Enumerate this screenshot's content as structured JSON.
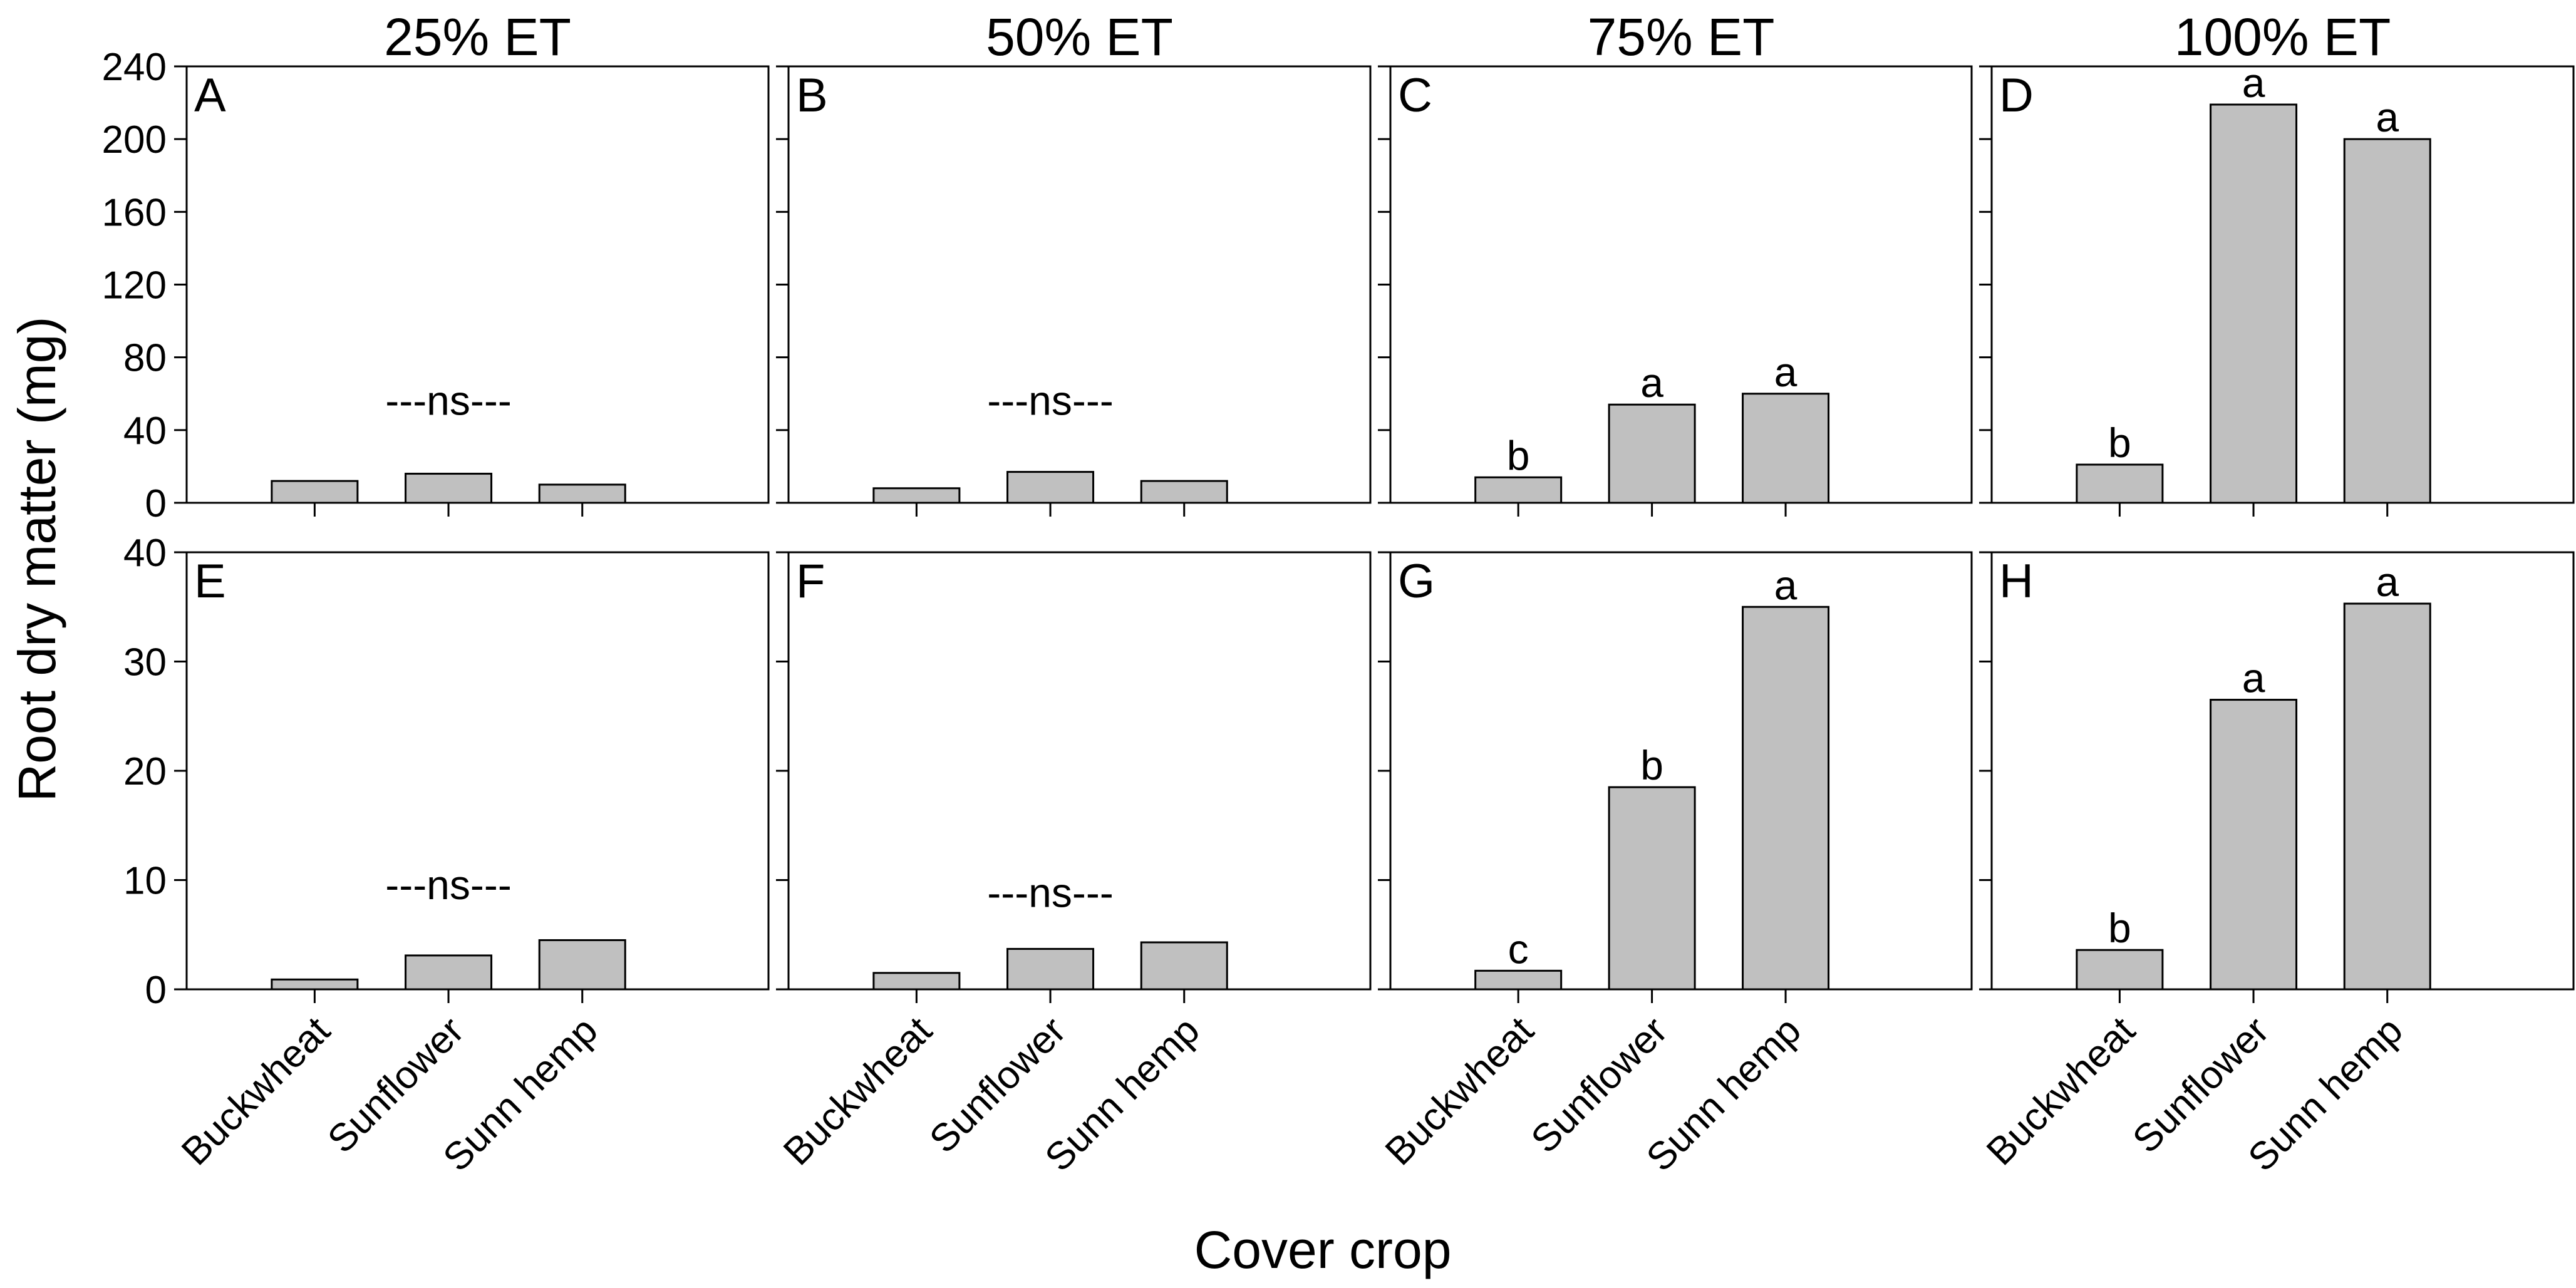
{
  "colors": {
    "bar_fill": "#c0c0c0",
    "bar_stroke": "#000000",
    "text": "#000000"
  },
  "figure": {
    "ylabel": "Root dry matter (mg)",
    "xlabel": "Cover crop"
  },
  "chart_data": [
    {
      "type": "bar",
      "panel": "A",
      "title": "25% ET",
      "categories": [
        "Buckwheat",
        "Sunflower",
        "Sunn hemp"
      ],
      "values": [
        12,
        16,
        10
      ],
      "ylim": [
        0,
        240
      ],
      "yticks": [
        0,
        40,
        80,
        120,
        160,
        200,
        240
      ],
      "letters": [],
      "annotation": "---ns---",
      "annotation_y": 56
    },
    {
      "type": "bar",
      "panel": "B",
      "title": "50% ET",
      "categories": [
        "Buckwheat",
        "Sunflower",
        "Sunn hemp"
      ],
      "values": [
        8,
        17,
        12
      ],
      "ylim": [
        0,
        240
      ],
      "yticks": [
        0,
        40,
        80,
        120,
        160,
        200,
        240
      ],
      "letters": [],
      "annotation": "---ns---",
      "annotation_y": 56
    },
    {
      "type": "bar",
      "panel": "C",
      "title": "75% ET",
      "categories": [
        "Buckwheat",
        "Sunflower",
        "Sunn hemp"
      ],
      "values": [
        14,
        54,
        60
      ],
      "ylim": [
        0,
        240
      ],
      "yticks": [
        0,
        40,
        80,
        120,
        160,
        200,
        240
      ],
      "letters": [
        "b",
        "a",
        "a"
      ],
      "annotation": "",
      "annotation_y": 0
    },
    {
      "type": "bar",
      "panel": "D",
      "title": "100% ET",
      "categories": [
        "Buckwheat",
        "Sunflower",
        "Sunn hemp"
      ],
      "values": [
        21,
        219,
        200
      ],
      "ylim": [
        0,
        240
      ],
      "yticks": [
        0,
        40,
        80,
        120,
        160,
        200,
        240
      ],
      "letters": [
        "b",
        "a",
        "a"
      ],
      "annotation": "",
      "annotation_y": 0
    },
    {
      "type": "bar",
      "panel": "E",
      "title": "",
      "categories": [
        "Buckwheat",
        "Sunflower",
        "Sunn hemp"
      ],
      "values": [
        0.9,
        3.1,
        4.5
      ],
      "ylim": [
        0,
        40
      ],
      "yticks": [
        0,
        10,
        20,
        30,
        40
      ],
      "letters": [],
      "annotation": "---ns---",
      "annotation_y": 9.5
    },
    {
      "type": "bar",
      "panel": "F",
      "title": "",
      "categories": [
        "Buckwheat",
        "Sunflower",
        "Sunn hemp"
      ],
      "values": [
        1.5,
        3.7,
        4.3
      ],
      "ylim": [
        0,
        40
      ],
      "yticks": [
        0,
        10,
        20,
        30,
        40
      ],
      "letters": [],
      "annotation": "---ns---",
      "annotation_y": 8.8
    },
    {
      "type": "bar",
      "panel": "G",
      "title": "",
      "categories": [
        "Buckwheat",
        "Sunflower",
        "Sunn hemp"
      ],
      "values": [
        1.7,
        18.5,
        35
      ],
      "ylim": [
        0,
        40
      ],
      "yticks": [
        0,
        10,
        20,
        30,
        40
      ],
      "letters": [
        "c",
        "b",
        "a"
      ],
      "annotation": "",
      "annotation_y": 0
    },
    {
      "type": "bar",
      "panel": "H",
      "title": "",
      "categories": [
        "Buckwheat",
        "Sunflower",
        "Sunn hemp"
      ],
      "values": [
        3.6,
        26.5,
        35.3
      ],
      "ylim": [
        0,
        40
      ],
      "yticks": [
        0,
        10,
        20,
        30,
        40
      ],
      "letters": [
        "b",
        "a",
        "a"
      ],
      "annotation": "",
      "annotation_y": 0
    }
  ]
}
